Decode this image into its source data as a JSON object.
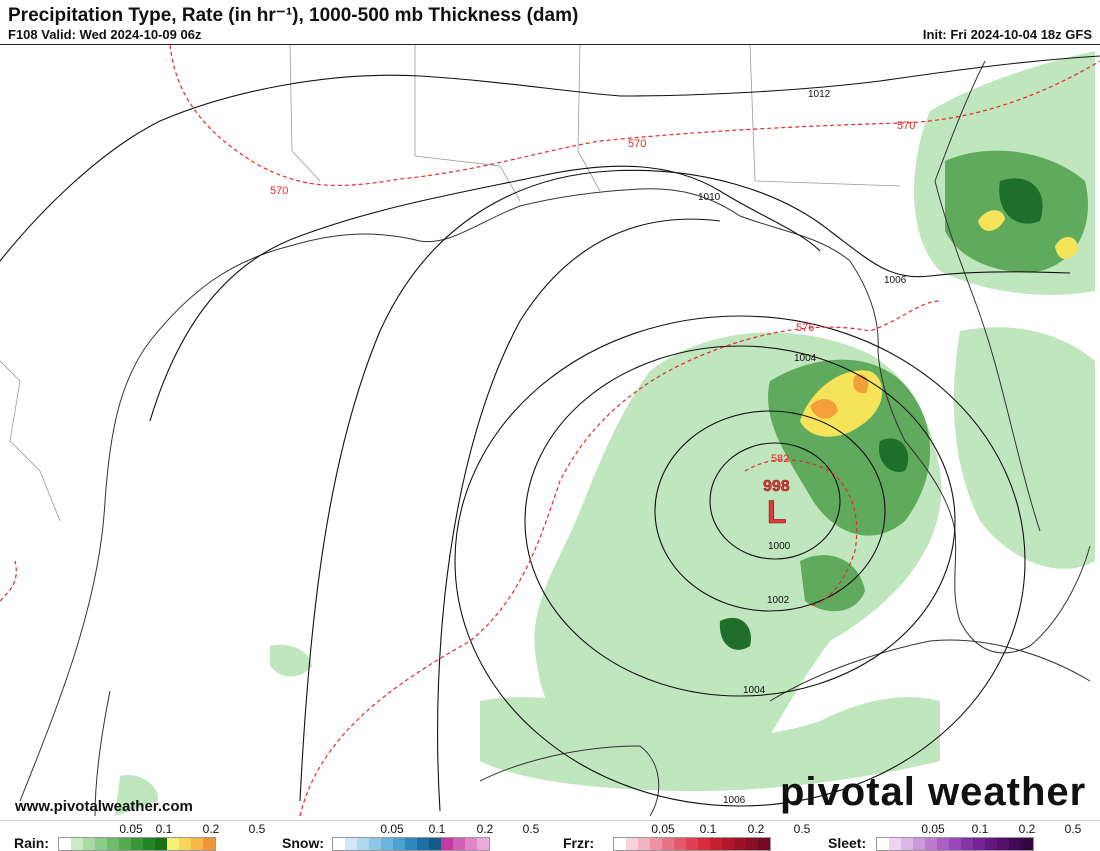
{
  "header": {
    "title": "Precipitation Type, Rate (in hr⁻¹), 1000-500 mb Thickness (dam)",
    "valid": "F108 Valid: Wed 2024-10-09 06z",
    "init": "Init: Fri 2024-10-04 18z GFS"
  },
  "map": {
    "low_pressure_value": "998",
    "low_pressure_symbol": "L",
    "isobar_labels": [
      "1012",
      "1010",
      "1006",
      "1004",
      "1002",
      "1000",
      "1004",
      "1006"
    ],
    "thickness_labels": [
      "570",
      "570",
      "570",
      "576",
      "582"
    ],
    "colors": {
      "isobar": "#111111",
      "thickness": "#e8282d",
      "low_label": "#e23b3b",
      "rain_light": "#bfe6bd",
      "rain_mid": "#5faa5c",
      "rain_heavy": "#1f6e2a",
      "yellow": "#f5e35a",
      "orange": "#f4a03a"
    }
  },
  "footer": {
    "website": "www.pivotalweather.com",
    "brand": "pivotal weather"
  },
  "legend": {
    "rain": {
      "name": "Rain:",
      "ticks": [
        "0.05",
        "0.1",
        "0.2",
        "0.5"
      ],
      "colors": [
        "#ffffff",
        "#c7ebc4",
        "#a9dca5",
        "#8ccc88",
        "#70bb6b",
        "#55a951",
        "#3a963a",
        "#248326",
        "#197017",
        "#f8f070",
        "#f9d65a",
        "#f7b648",
        "#f29438"
      ]
    },
    "snow": {
      "name": "Snow:",
      "ticks": [
        "0.05",
        "0.1",
        "0.2",
        "0.5"
      ],
      "colors": [
        "#ffffff",
        "#cfe8f7",
        "#aed8f0",
        "#8cc7e8",
        "#6ab5df",
        "#4aa1d2",
        "#2f88bd",
        "#1d6fa3",
        "#125a88",
        "#c33aa0",
        "#d35fb6",
        "#e085c9",
        "#ecaadb"
      ]
    },
    "frzr": {
      "name": "Frzr:",
      "ticks": [
        "0.05",
        "0.1",
        "0.2",
        "0.5"
      ],
      "colors": [
        "#ffffff",
        "#f8d3de",
        "#f3b3c3",
        "#ee93a6",
        "#e87487",
        "#e35a6b",
        "#df4152",
        "#d62c3b",
        "#c41f2c",
        "#b0172a",
        "#9d1228",
        "#8a0e26",
        "#770a23"
      ]
    },
    "sleet": {
      "name": "Sleet:",
      "ticks": [
        "0.05",
        "0.1",
        "0.2",
        "0.5"
      ],
      "colors": [
        "#ffffff",
        "#ecd4f0",
        "#dcb6e6",
        "#cc98dc",
        "#bc7bd1",
        "#ab60c4",
        "#9948b5",
        "#8633a4",
        "#742391",
        "#62187c",
        "#521067",
        "#430a54",
        "#350543"
      ]
    }
  }
}
